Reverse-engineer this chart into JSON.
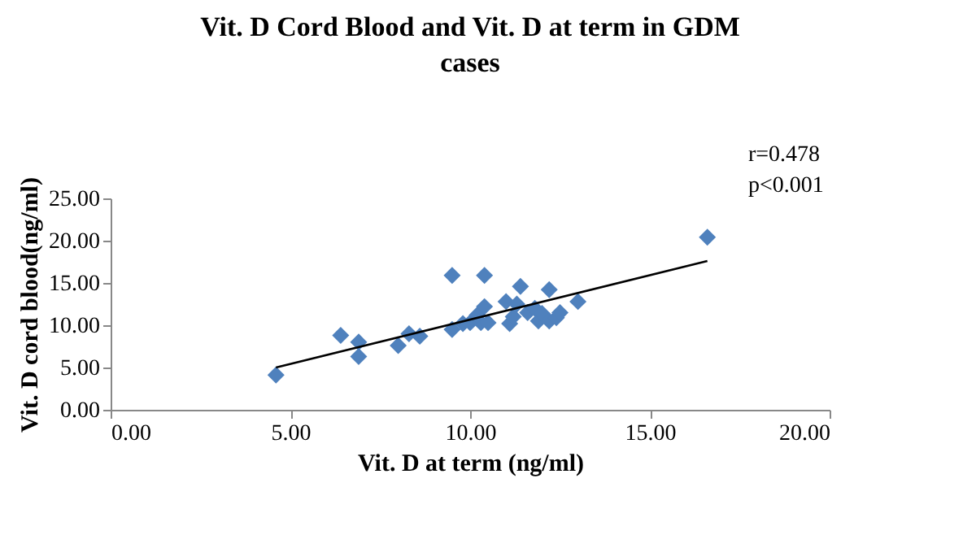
{
  "chart_data": {
    "type": "scatter",
    "title": "Vit. D Cord Blood and Vit. D at term in GDM cases",
    "xlabel": "Vit. D at term (ng/ml)",
    "ylabel": "Vit. D cord blood(ng/ml)",
    "xlim": [
      0,
      20
    ],
    "xticks": [
      {
        "value": 0,
        "label": "0.00"
      },
      {
        "value": 5,
        "label": "5.00"
      },
      {
        "value": 10,
        "label": "10.00"
      },
      {
        "value": 15,
        "label": "15.00"
      },
      {
        "value": 20,
        "label": "20.00"
      }
    ],
    "ylim": [
      0,
      25
    ],
    "yticks": [
      {
        "value": 0,
        "label": "0.00"
      },
      {
        "value": 5,
        "label": "5.00"
      },
      {
        "value": 10,
        "label": "10.00"
      },
      {
        "value": 15,
        "label": "15.00"
      },
      {
        "value": 20,
        "label": "20.00"
      },
      {
        "value": 25,
        "label": "25.00"
      }
    ],
    "marker": "diamond",
    "grid": false,
    "annotations": [
      "r=0.478",
      "p<0.001"
    ],
    "series": [
      {
        "color": "#4f81bd",
        "x": [
          4.6,
          6.4,
          6.9,
          6.9,
          8.0,
          8.3,
          8.6,
          9.5,
          9.5,
          9.8,
          10.0,
          10.3,
          10.4,
          10.2,
          10.4,
          10.5,
          11.0,
          11.1,
          11.2,
          11.3,
          11.4,
          11.6,
          11.8,
          11.9,
          12.0,
          12.2,
          12.2,
          12.4,
          12.5,
          13.0,
          16.6
        ],
        "values": [
          4.1,
          8.8,
          8.0,
          6.3,
          7.6,
          9.0,
          8.7,
          15.9,
          9.5,
          10.2,
          10.3,
          10.3,
          15.9,
          11.2,
          12.2,
          10.3,
          12.8,
          10.2,
          11.0,
          12.5,
          14.6,
          11.5,
          12.0,
          10.5,
          11.4,
          14.2,
          10.5,
          10.9,
          11.5,
          12.8,
          20.4
        ]
      },
      {
        "type": "line",
        "color": "#000000",
        "line_style": "solid",
        "marker": "none",
        "x": [
          4.6,
          16.6
        ],
        "values": [
          5.0,
          17.6
        ]
      }
    ]
  }
}
